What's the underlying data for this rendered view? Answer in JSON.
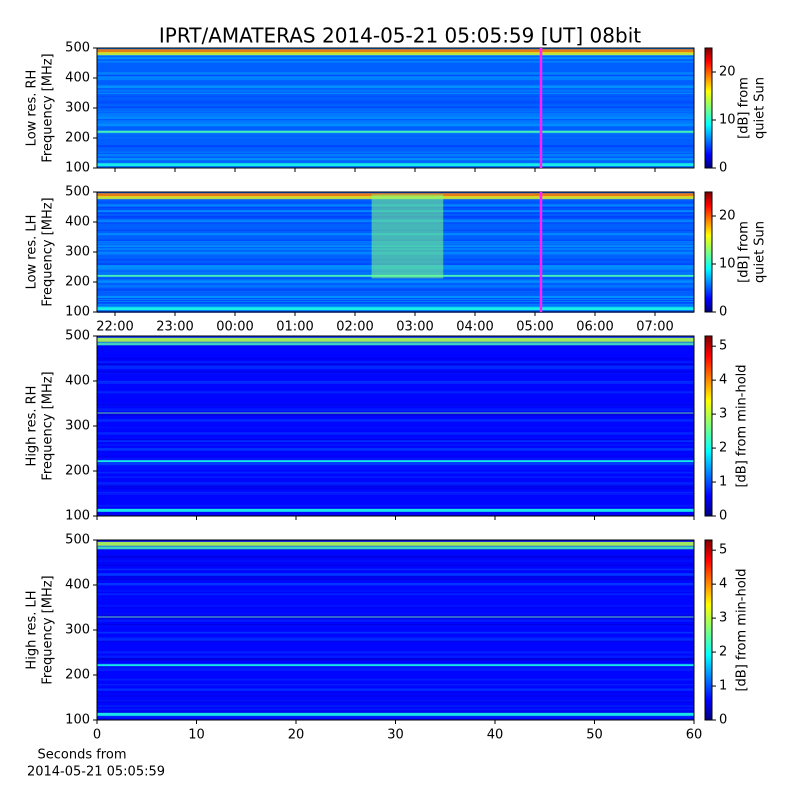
{
  "title": "IPRT/AMATERAS 2014-05-21 05:05:59 [UT]   08bit",
  "x_label": [
    "Seconds from",
    "2014-05-21 05:05:59"
  ],
  "chart_data": [
    {
      "type": "heatmap",
      "y_label": [
        "Low res. RH",
        "Frequency [MHz]"
      ],
      "colorbar_label": [
        "[dB] from",
        "quiet Sun"
      ],
      "xlim": [
        21.7,
        31.65
      ],
      "marker_x": 29.1,
      "marker_color": "#ff20ff",
      "ylim": [
        100,
        500
      ],
      "yticks": [
        100,
        200,
        300,
        400,
        500
      ],
      "clim": [
        0,
        25
      ],
      "cticks": [
        0,
        10,
        20
      ]
    },
    {
      "type": "heatmap",
      "y_label": [
        "Low res. LH",
        "Frequency [MHz]"
      ],
      "colorbar_label": [
        "[dB] from",
        "quiet Sun"
      ],
      "xlim": [
        21.7,
        31.65
      ],
      "marker_x": 29.1,
      "marker_color": "#ff20ff",
      "xticks": [
        {
          "value": 22,
          "label": "22:00"
        },
        {
          "value": 23,
          "label": "23:00"
        },
        {
          "value": 24,
          "label": "00:00"
        },
        {
          "value": 25,
          "label": "01:00"
        },
        {
          "value": 26,
          "label": "02:00"
        },
        {
          "value": 27,
          "label": "03:00"
        },
        {
          "value": 28,
          "label": "04:00"
        },
        {
          "value": 29,
          "label": "05:00"
        },
        {
          "value": 30,
          "label": "06:00"
        },
        {
          "value": 31,
          "label": "07:00"
        }
      ],
      "ylim": [
        100,
        500
      ],
      "yticks": [
        100,
        200,
        300,
        400,
        500
      ],
      "clim": [
        0,
        25
      ],
      "cticks": [
        0,
        10,
        20
      ]
    },
    {
      "type": "heatmap",
      "y_label": [
        "High res. RH",
        "Frequency [MHz]"
      ],
      "colorbar_label": [
        "[dB] from min-hold"
      ],
      "xlim": [
        0,
        60
      ],
      "ylim": [
        100,
        500
      ],
      "yticks": [
        100,
        200,
        300,
        400,
        500
      ],
      "clim": [
        0,
        5.3
      ],
      "cticks": [
        0,
        1,
        2,
        3,
        4,
        5
      ]
    },
    {
      "type": "heatmap",
      "y_label": [
        "High res. LH",
        "Frequency [MHz]"
      ],
      "colorbar_label": [
        "[dB] from min-hold"
      ],
      "xlim": [
        0,
        60
      ],
      "xticks": [
        0,
        10,
        20,
        30,
        40,
        50,
        60
      ],
      "ylim": [
        100,
        500
      ],
      "yticks": [
        100,
        200,
        300,
        400,
        500
      ],
      "clim": [
        0,
        5.3
      ],
      "cticks": [
        0,
        1,
        2,
        3,
        4,
        5
      ]
    }
  ]
}
